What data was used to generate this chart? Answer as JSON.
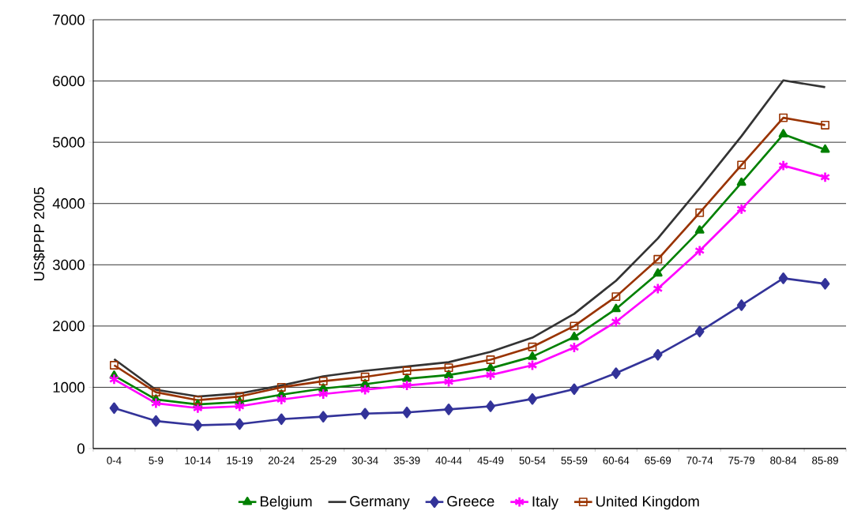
{
  "chart_data": {
    "type": "line",
    "ylabel": "US$PPP 2005",
    "categories": [
      "0-4",
      "5-9",
      "10-14",
      "15-19",
      "20-24",
      "25-29",
      "30-34",
      "35-39",
      "40-44",
      "45-49",
      "50-54",
      "55-59",
      "60-64",
      "65-69",
      "70-74",
      "75-79",
      "80-84",
      "85-89"
    ],
    "series": [
      {
        "name": "Belgium",
        "color": "#008000",
        "marker": "triangle",
        "values": [
          1190,
          800,
          720,
          760,
          880,
          980,
          1050,
          1140,
          1200,
          1310,
          1500,
          1820,
          2280,
          2860,
          3560,
          4340,
          5130,
          4880
        ]
      },
      {
        "name": "Germany",
        "color": "#333333",
        "marker": "none",
        "values": [
          1460,
          960,
          850,
          900,
          1030,
          1180,
          1270,
          1340,
          1410,
          1580,
          1810,
          2200,
          2740,
          3430,
          4250,
          5100,
          6010,
          5900
        ]
      },
      {
        "name": "Greece",
        "color": "#333399",
        "marker": "diamond",
        "values": [
          660,
          450,
          380,
          400,
          480,
          520,
          570,
          590,
          640,
          690,
          810,
          970,
          1230,
          1530,
          1910,
          2340,
          2780,
          2690
        ]
      },
      {
        "name": "Italy",
        "color": "#ff00ff",
        "marker": "cross",
        "values": [
          1130,
          740,
          660,
          690,
          800,
          890,
          960,
          1030,
          1090,
          1200,
          1360,
          1650,
          2070,
          2610,
          3230,
          3910,
          4620,
          4430
        ]
      },
      {
        "name": "United Kingdom",
        "color": "#993300",
        "marker": "square",
        "values": [
          1360,
          920,
          790,
          850,
          1000,
          1100,
          1170,
          1270,
          1320,
          1450,
          1660,
          2000,
          2480,
          3090,
          3850,
          4630,
          5400,
          5280
        ]
      }
    ],
    "ylim": [
      0,
      7000
    ],
    "yticks": [
      0,
      1000,
      2000,
      3000,
      4000,
      5000,
      6000,
      7000
    ],
    "grid": "y",
    "legend": "bottom",
    "line_style": "solid"
  }
}
